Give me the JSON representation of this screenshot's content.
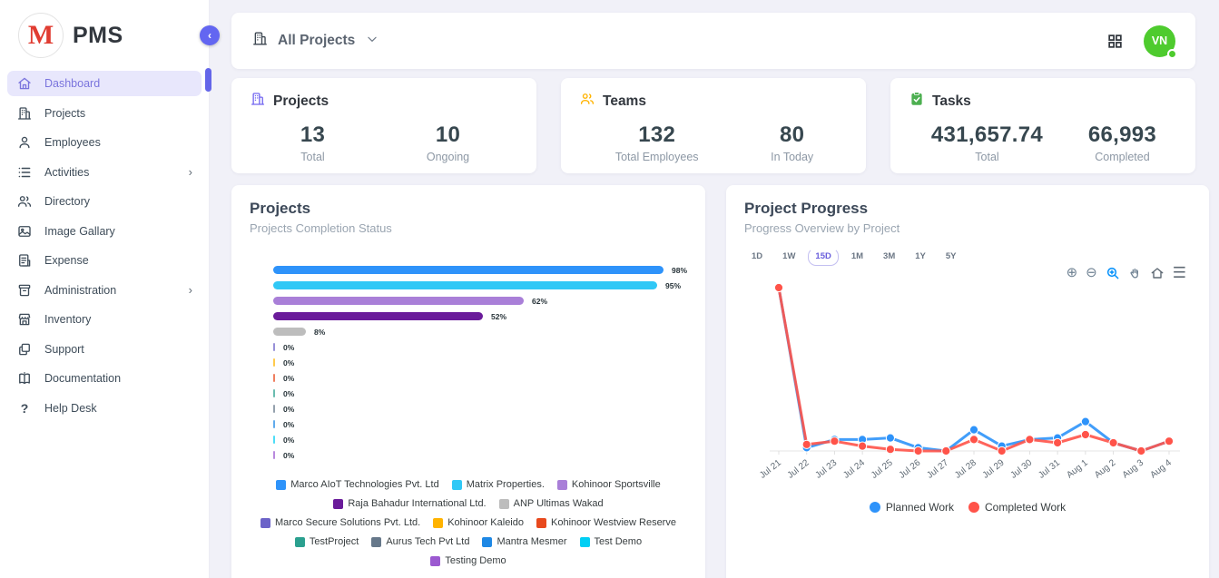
{
  "brand": {
    "name": "PMS",
    "logo_letter": "M",
    "logo_color": "#e03c31"
  },
  "sidebar": {
    "items": [
      {
        "label": "Dashboard",
        "icon": "home-icon",
        "active": true,
        "has_submenu": false
      },
      {
        "label": "Projects",
        "icon": "building-icon",
        "active": false,
        "has_submenu": false
      },
      {
        "label": "Employees",
        "icon": "user-icon",
        "active": false,
        "has_submenu": false
      },
      {
        "label": "Activities",
        "icon": "list-icon",
        "active": false,
        "has_submenu": true
      },
      {
        "label": "Directory",
        "icon": "users-icon",
        "active": false,
        "has_submenu": false
      },
      {
        "label": "Image Gallary",
        "icon": "image-icon",
        "active": false,
        "has_submenu": false
      },
      {
        "label": "Expense",
        "icon": "receipt-icon",
        "active": false,
        "has_submenu": false
      },
      {
        "label": "Administration",
        "icon": "archive-icon",
        "active": false,
        "has_submenu": true
      },
      {
        "label": "Inventory",
        "icon": "store-icon",
        "active": false,
        "has_submenu": false
      },
      {
        "label": "Support",
        "icon": "copy-icon",
        "active": false,
        "has_submenu": false
      },
      {
        "label": "Documentation",
        "icon": "book-icon",
        "active": false,
        "has_submenu": false
      },
      {
        "label": "Help Desk",
        "icon": "help-icon",
        "active": false,
        "has_submenu": false
      }
    ]
  },
  "topbar": {
    "scope_label": "All Projects",
    "avatar_initials": "VN",
    "avatar_color": "#4ecb2e"
  },
  "stats": [
    {
      "title": "Projects",
      "icon": "building-icon",
      "icon_color": "#7367F0",
      "metrics": [
        {
          "value": "13",
          "label": "Total"
        },
        {
          "value": "10",
          "label": "Ongoing"
        }
      ]
    },
    {
      "title": "Teams",
      "icon": "team-icon",
      "icon_color": "#FFB300",
      "metrics": [
        {
          "value": "132",
          "label": "Total Employees"
        },
        {
          "value": "80",
          "label": "In Today"
        }
      ]
    },
    {
      "title": "Tasks",
      "icon": "task-icon",
      "icon_color": "#4CAF50",
      "metrics": [
        {
          "value": "431,657.74",
          "label": "Total"
        },
        {
          "value": "66,993",
          "label": "Completed"
        }
      ]
    }
  ],
  "projects_panel": {
    "title": "Projects",
    "subtitle": "Projects Completion Status"
  },
  "progress_panel": {
    "title": "Project Progress",
    "subtitle": "Progress Overview by Project",
    "ranges": [
      "1D",
      "1W",
      "15D",
      "1M",
      "3M",
      "1Y",
      "5Y"
    ],
    "selected_range": "15D",
    "toolbar_icons": [
      "zoom-in-icon",
      "zoom-out-icon",
      "selection-zoom-icon",
      "pan-icon",
      "reset-home-icon",
      "menu-icon"
    ]
  },
  "chart_data": [
    {
      "type": "bar",
      "orientation": "horizontal",
      "title": "Projects Completion Status",
      "unit": "%",
      "xlim": [
        0,
        100
      ],
      "categories": [
        "Marco AIoT Technologies Pvt. Ltd",
        "Matrix Properties.",
        "Kohinoor Sportsville",
        "Raja Bahadur International Ltd.",
        "ANP Ultimas Wakad",
        "Marco Secure Solutions Pvt. Ltd.",
        "Kohinoor Kaleido",
        "Kohinoor Westview Reserve",
        "TestProject",
        "Aurus Tech Pvt Ltd",
        "Mantra Mesmer",
        "Test Demo",
        "Testing Demo"
      ],
      "values": [
        98,
        95,
        62,
        52,
        8,
        0,
        0,
        0,
        0,
        0,
        0,
        0,
        0
      ],
      "colors": [
        "#2E93FA",
        "#30C8F6",
        "#A97FD8",
        "#6A1B9A",
        "#BDBDBD",
        "#6C63C8",
        "#FFB300",
        "#E8491D",
        "#2BA08F",
        "#66788A",
        "#1E88E5",
        "#00CFF4",
        "#9B59D0"
      ],
      "legend_position": "bottom"
    },
    {
      "type": "line",
      "x": [
        "Jul 21",
        "Jul 22",
        "Jul 23",
        "Jul 24",
        "Jul 25",
        "Jul 26",
        "Jul 27",
        "Jul 28",
        "Jul 29",
        "Jul 30",
        "Jul 31",
        "Aug 1",
        "Aug 2",
        "Aug 3",
        "Aug 4"
      ],
      "series": [
        {
          "name": "Planned Work",
          "color": "#2E93FA",
          "values": [
            100,
            2,
            7,
            7,
            8,
            2,
            0,
            13,
            3,
            7,
            8,
            18,
            5,
            0,
            6
          ]
        },
        {
          "name": "Completed Work",
          "color": "#FF5349",
          "values": [
            100,
            4,
            6,
            3,
            1,
            0,
            0,
            7,
            0,
            7,
            5,
            10,
            5,
            0,
            6
          ]
        }
      ],
      "ylim": [
        0,
        100
      ],
      "y_axis_visible": false,
      "grid": false,
      "legend_position": "bottom"
    }
  ]
}
